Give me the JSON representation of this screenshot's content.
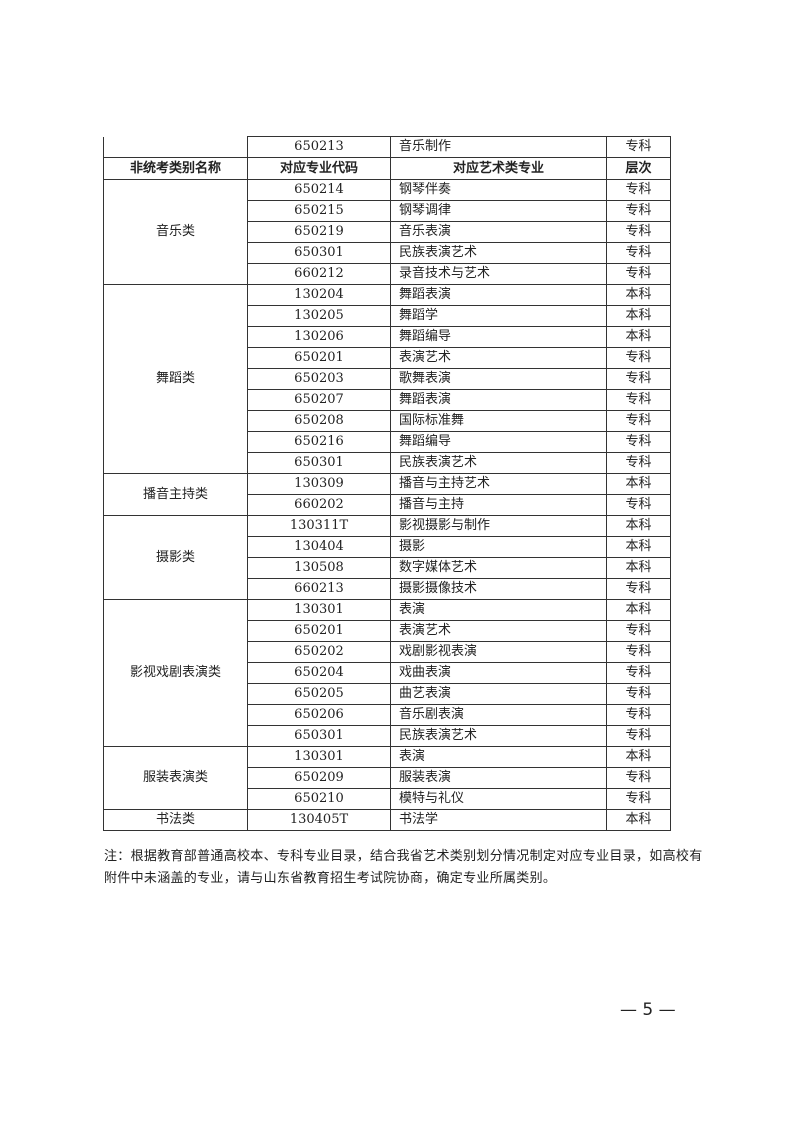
{
  "continued_row": {
    "code": "650213",
    "major": "音乐制作",
    "level": "专科"
  },
  "header": {
    "category": "非统考类别名称",
    "code": "对应专业代码",
    "major": "对应艺术类专业",
    "level": "层次"
  },
  "groups": [
    {
      "category": "音乐类",
      "rows": [
        {
          "code": "650214",
          "major": "钢琴伴奏",
          "level": "专科"
        },
        {
          "code": "650215",
          "major": "钢琴调律",
          "level": "专科"
        },
        {
          "code": "650219",
          "major": "音乐表演",
          "level": "专科"
        },
        {
          "code": "650301",
          "major": "民族表演艺术",
          "level": "专科"
        },
        {
          "code": "660212",
          "major": "录音技术与艺术",
          "level": "专科"
        }
      ]
    },
    {
      "category": "舞蹈类",
      "rows": [
        {
          "code": "130204",
          "major": "舞蹈表演",
          "level": "本科"
        },
        {
          "code": "130205",
          "major": "舞蹈学",
          "level": "本科"
        },
        {
          "code": "130206",
          "major": "舞蹈编导",
          "level": "本科"
        },
        {
          "code": "650201",
          "major": "表演艺术",
          "level": "专科"
        },
        {
          "code": "650203",
          "major": "歌舞表演",
          "level": "专科"
        },
        {
          "code": "650207",
          "major": "舞蹈表演",
          "level": "专科"
        },
        {
          "code": "650208",
          "major": "国际标准舞",
          "level": "专科"
        },
        {
          "code": "650216",
          "major": "舞蹈编导",
          "level": "专科"
        },
        {
          "code": "650301",
          "major": "民族表演艺术",
          "level": "专科"
        }
      ]
    },
    {
      "category": "播音主持类",
      "rows": [
        {
          "code": "130309",
          "major": "播音与主持艺术",
          "level": "本科"
        },
        {
          "code": "660202",
          "major": "播音与主持",
          "level": "专科"
        }
      ]
    },
    {
      "category": "摄影类",
      "rows": [
        {
          "code": "130311T",
          "major": "影视摄影与制作",
          "level": "本科"
        },
        {
          "code": "130404",
          "major": "摄影",
          "level": "本科"
        },
        {
          "code": "130508",
          "major": "数字媒体艺术",
          "level": "本科"
        },
        {
          "code": "660213",
          "major": "摄影摄像技术",
          "level": "专科"
        }
      ]
    },
    {
      "category": "影视戏剧表演类",
      "rows": [
        {
          "code": "130301",
          "major": "表演",
          "level": "本科"
        },
        {
          "code": "650201",
          "major": "表演艺术",
          "level": "专科"
        },
        {
          "code": "650202",
          "major": "戏剧影视表演",
          "level": "专科"
        },
        {
          "code": "650204",
          "major": "戏曲表演",
          "level": "专科"
        },
        {
          "code": "650205",
          "major": "曲艺表演",
          "level": "专科"
        },
        {
          "code": "650206",
          "major": "音乐剧表演",
          "level": "专科"
        },
        {
          "code": "650301",
          "major": "民族表演艺术",
          "level": "专科"
        }
      ]
    },
    {
      "category": "服装表演类",
      "rows": [
        {
          "code": "130301",
          "major": "表演",
          "level": "本科"
        },
        {
          "code": "650209",
          "major": "服装表演",
          "level": "专科"
        },
        {
          "code": "650210",
          "major": "模特与礼仪",
          "level": "专科"
        }
      ]
    },
    {
      "category": "书法类",
      "rows": [
        {
          "code": "130405T",
          "major": "书法学",
          "level": "本科"
        }
      ]
    }
  ],
  "note": "注：根据教育部普通高校本、专科专业目录，结合我省艺术类别划分情况制定对应专业目录，如高校有附件中未涵盖的专业，请与山东省教育招生考试院协商，确定专业所属类别。",
  "page_number": "— 5 —"
}
